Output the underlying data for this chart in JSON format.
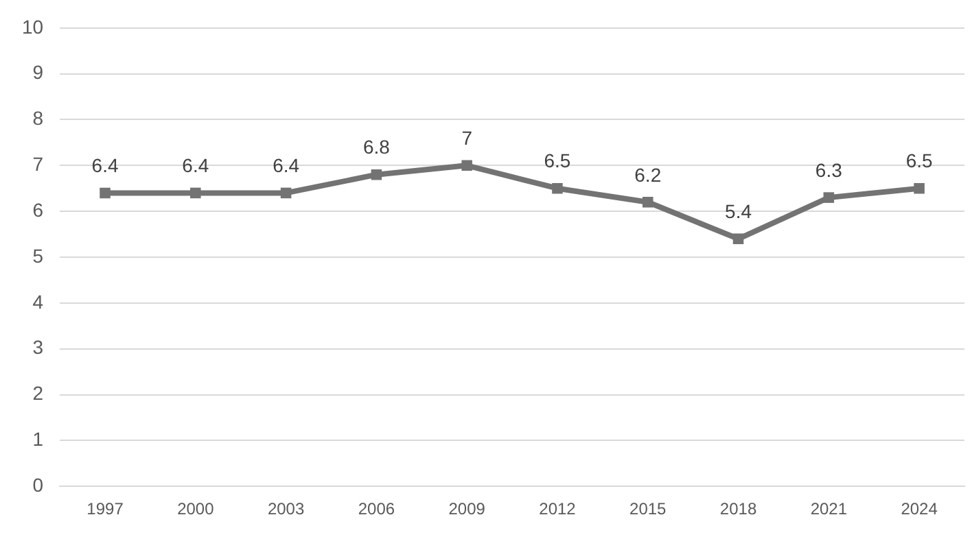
{
  "chart_data": {
    "type": "line",
    "categories": [
      "1997",
      "2000",
      "2003",
      "2006",
      "2009",
      "2012",
      "2015",
      "2018",
      "2021",
      "2024"
    ],
    "values": [
      6.4,
      6.4,
      6.4,
      6.8,
      7,
      6.5,
      6.2,
      5.4,
      6.3,
      6.5
    ],
    "color": "#737373",
    "ylim": [
      0,
      10
    ],
    "yticks": [
      0,
      1,
      2,
      3,
      4,
      5,
      6,
      7,
      8,
      9,
      10
    ],
    "grid": "y",
    "legend": false,
    "marker": "square",
    "line_style": "solid",
    "data_labels": true
  }
}
